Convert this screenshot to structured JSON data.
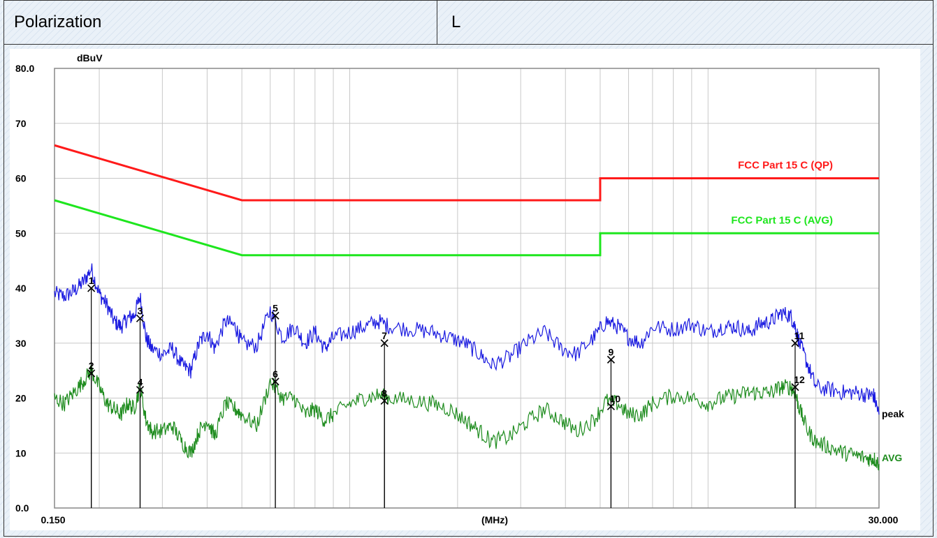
{
  "header": {
    "label": "Polarization",
    "value": "L"
  },
  "colors": {
    "qp_limit": "#ff1a1a",
    "avg_limit": "#1ee61e",
    "peak_trace": "#1a1ae0",
    "avg_trace": "#1e8c1e",
    "grid": "#c8c8c8"
  },
  "chart_data": {
    "type": "line",
    "title": "",
    "xlabel": "(MHz)",
    "ylabel": "dBuV",
    "xscale": "log",
    "xlim": [
      0.15,
      30
    ],
    "ylim": [
      0,
      80
    ],
    "xtick_labels": [
      "0.150",
      "30.000"
    ],
    "ytick_labels": [
      "0.0",
      "10",
      "20",
      "30",
      "40",
      "50",
      "60",
      "70",
      "80.0"
    ],
    "ytick_values": [
      0,
      10,
      20,
      30,
      40,
      50,
      60,
      70,
      80
    ],
    "grid": true,
    "limit_lines": [
      {
        "name": "FCC  Part 15 C (QP)",
        "x": [
          0.15,
          0.5,
          5,
          5,
          30
        ],
        "y": [
          66,
          56,
          56,
          60,
          60
        ]
      },
      {
        "name": "FCC  Part 15 C (AVG)",
        "x": [
          0.15,
          0.5,
          5,
          5,
          30
        ],
        "y": [
          56,
          46,
          46,
          50,
          50
        ]
      }
    ],
    "series": [
      {
        "name": "peak",
        "x": [
          0.15,
          0.16,
          0.17,
          0.18,
          0.19,
          0.2,
          0.21,
          0.22,
          0.23,
          0.24,
          0.25,
          0.26,
          0.27,
          0.28,
          0.3,
          0.32,
          0.34,
          0.36,
          0.38,
          0.4,
          0.42,
          0.45,
          0.48,
          0.5,
          0.55,
          0.6,
          0.65,
          0.7,
          0.75,
          0.8,
          0.85,
          0.9,
          1.0,
          1.1,
          1.2,
          1.3,
          1.5,
          1.7,
          1.9,
          2.1,
          2.3,
          2.5,
          2.8,
          3.1,
          3.5,
          3.9,
          4.3,
          4.8,
          5.2,
          5.6,
          6.0,
          6.5,
          7.0,
          8.0,
          9.0,
          10.0,
          11.0,
          12.0,
          13.0,
          14.0,
          15.0,
          16.0,
          17.0,
          17.5,
          18.0,
          19.0,
          20.0,
          22.0,
          24.0,
          26.0,
          28.0,
          29.0,
          30.0
        ],
        "y": [
          39,
          38.5,
          39.5,
          41,
          43.5,
          39,
          37,
          34,
          33,
          34.5,
          35,
          38.5,
          31,
          29,
          28,
          29,
          26,
          25,
          30,
          32,
          29,
          34,
          33,
          30,
          29.5,
          36,
          31,
          33,
          30,
          32,
          29,
          31,
          32,
          33,
          34,
          33,
          32.5,
          32,
          31,
          30,
          28,
          26,
          27.5,
          30,
          32,
          29,
          28,
          31,
          34,
          33,
          31,
          30,
          33,
          32.5,
          33.5,
          32,
          33,
          33,
          32,
          33.5,
          34,
          35.5,
          35,
          33,
          30,
          26,
          22,
          21.5,
          21,
          21,
          20.5,
          20.5,
          17
        ]
      },
      {
        "name": "AVG",
        "x": [
          0.15,
          0.16,
          0.17,
          0.18,
          0.19,
          0.2,
          0.21,
          0.22,
          0.23,
          0.24,
          0.25,
          0.26,
          0.27,
          0.28,
          0.3,
          0.32,
          0.34,
          0.36,
          0.38,
          0.4,
          0.42,
          0.45,
          0.48,
          0.5,
          0.55,
          0.6,
          0.65,
          0.7,
          0.75,
          0.8,
          0.85,
          0.9,
          1.0,
          1.1,
          1.2,
          1.3,
          1.5,
          1.7,
          1.9,
          2.1,
          2.3,
          2.5,
          2.8,
          3.1,
          3.5,
          3.9,
          4.3,
          4.8,
          5.2,
          5.6,
          6.0,
          6.5,
          7.0,
          8.0,
          9.0,
          10.0,
          11.0,
          12.0,
          13.0,
          14.0,
          15.0,
          16.0,
          17.0,
          17.5,
          18.0,
          19.0,
          20.0,
          22.0,
          24.0,
          26.0,
          28.0,
          29.0,
          30.0
        ],
        "y": [
          20,
          19,
          21,
          23,
          25,
          22,
          19,
          18,
          17,
          19,
          18,
          22,
          16,
          14,
          14,
          15,
          12,
          10,
          14,
          16,
          13,
          19,
          18,
          17,
          15,
          23,
          20,
          20,
          17,
          18,
          16,
          17,
          19,
          20,
          20.5,
          20,
          19.5,
          19,
          18,
          16,
          14,
          12,
          13,
          15.5,
          18,
          16,
          14,
          16,
          19.5,
          19,
          17,
          17,
          19,
          20.5,
          20,
          19,
          20,
          20.5,
          21,
          21,
          21,
          22,
          22,
          21,
          18,
          14,
          12,
          11,
          10,
          9.5,
          9,
          9,
          8
        ]
      }
    ],
    "markers": [
      {
        "label": "1",
        "x": 0.19,
        "y": 40
      },
      {
        "label": "2",
        "x": 0.19,
        "y": 24.5
      },
      {
        "label": "3",
        "x": 0.26,
        "y": 34.5
      },
      {
        "label": "4",
        "x": 0.26,
        "y": 21.5
      },
      {
        "label": "5",
        "x": 0.62,
        "y": 35
      },
      {
        "label": "6",
        "x": 0.62,
        "y": 23
      },
      {
        "label": "7",
        "x": 1.25,
        "y": 30
      },
      {
        "label": "8",
        "x": 1.25,
        "y": 19.5
      },
      {
        "label": "9",
        "x": 5.36,
        "y": 27
      },
      {
        "label": "10",
        "x": 5.36,
        "y": 18.5
      },
      {
        "label": "11",
        "x": 17.5,
        "y": 30
      },
      {
        "label": "12",
        "x": 17.5,
        "y": 22
      }
    ],
    "trace_labels": {
      "peak": "peak",
      "avg": "AVG"
    }
  }
}
